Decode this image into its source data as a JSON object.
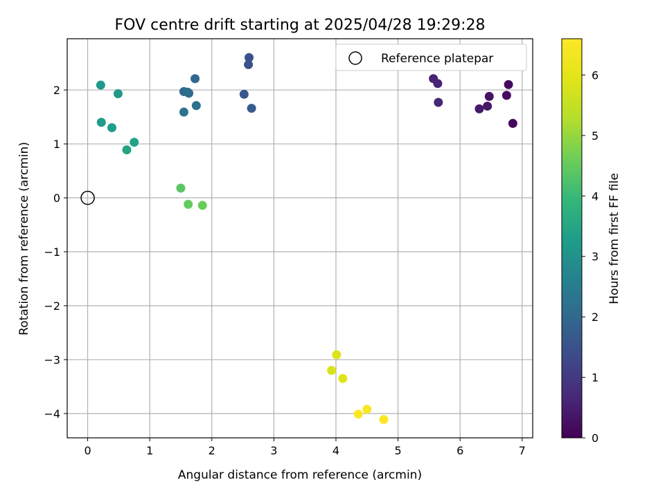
{
  "chart_data": {
    "type": "scatter",
    "title": "FOV centre drift starting at 2025/04/28 19:29:28",
    "xlabel": "Angular distance from reference (arcmin)",
    "ylabel": "Rotation from reference (arcmin)",
    "xlim": [
      -0.33,
      7.17
    ],
    "ylim": [
      -4.45,
      2.95
    ],
    "xticks": [
      0,
      1,
      2,
      3,
      4,
      5,
      6,
      7
    ],
    "yticks": [
      -4,
      -3,
      -2,
      -1,
      0,
      1,
      2
    ],
    "grid": true,
    "legend_position": "top-right",
    "legend": [
      "Reference platepar"
    ],
    "reference_point": {
      "x": 0,
      "y": 0
    },
    "colorbar": {
      "label": "Hours from first FF file",
      "range": [
        0,
        6.6
      ],
      "ticks": [
        0,
        1,
        2,
        3,
        4,
        5,
        6
      ],
      "colormap": "viridis"
    },
    "points": [
      {
        "x": 6.78,
        "y": 2.1,
        "c": 0.15
      },
      {
        "x": 6.85,
        "y": 1.38,
        "c": 0.1
      },
      {
        "x": 6.75,
        "y": 1.9,
        "c": 0.2
      },
      {
        "x": 6.47,
        "y": 1.88,
        "c": 0.3
      },
      {
        "x": 6.44,
        "y": 1.7,
        "c": 0.35
      },
      {
        "x": 6.31,
        "y": 1.65,
        "c": 0.4
      },
      {
        "x": 5.57,
        "y": 2.21,
        "c": 0.55
      },
      {
        "x": 5.64,
        "y": 2.12,
        "c": 0.6
      },
      {
        "x": 5.65,
        "y": 1.77,
        "c": 0.65
      },
      {
        "x": 2.6,
        "y": 2.6,
        "c": 1.5
      },
      {
        "x": 2.59,
        "y": 2.47,
        "c": 1.55
      },
      {
        "x": 2.52,
        "y": 1.92,
        "c": 1.6
      },
      {
        "x": 2.64,
        "y": 1.66,
        "c": 1.7
      },
      {
        "x": 1.73,
        "y": 2.21,
        "c": 1.95
      },
      {
        "x": 1.55,
        "y": 1.97,
        "c": 2.0
      },
      {
        "x": 1.63,
        "y": 1.94,
        "c": 2.05
      },
      {
        "x": 1.61,
        "y": 1.96,
        "c": 2.1
      },
      {
        "x": 1.75,
        "y": 1.71,
        "c": 2.2
      },
      {
        "x": 1.55,
        "y": 1.59,
        "c": 2.3
      },
      {
        "x": 0.49,
        "y": 1.93,
        "c": 3.15
      },
      {
        "x": 0.21,
        "y": 2.09,
        "c": 3.2
      },
      {
        "x": 0.22,
        "y": 1.4,
        "c": 3.25
      },
      {
        "x": 0.39,
        "y": 1.3,
        "c": 3.3
      },
      {
        "x": 0.75,
        "y": 1.03,
        "c": 3.4
      },
      {
        "x": 0.63,
        "y": 0.89,
        "c": 3.45
      },
      {
        "x": 1.5,
        "y": 0.18,
        "c": 4.4
      },
      {
        "x": 1.62,
        "y": -0.12,
        "c": 4.5
      },
      {
        "x": 1.85,
        "y": -0.14,
        "c": 4.55
      },
      {
        "x": 3.93,
        "y": -3.2,
        "c": 5.8
      },
      {
        "x": 4.01,
        "y": -2.91,
        "c": 5.85
      },
      {
        "x": 4.11,
        "y": -3.35,
        "c": 5.9
      },
      {
        "x": 4.5,
        "y": -3.92,
        "c": 6.5
      },
      {
        "x": 4.36,
        "y": -4.01,
        "c": 6.55
      },
      {
        "x": 4.77,
        "y": -4.11,
        "c": 6.6
      }
    ]
  }
}
